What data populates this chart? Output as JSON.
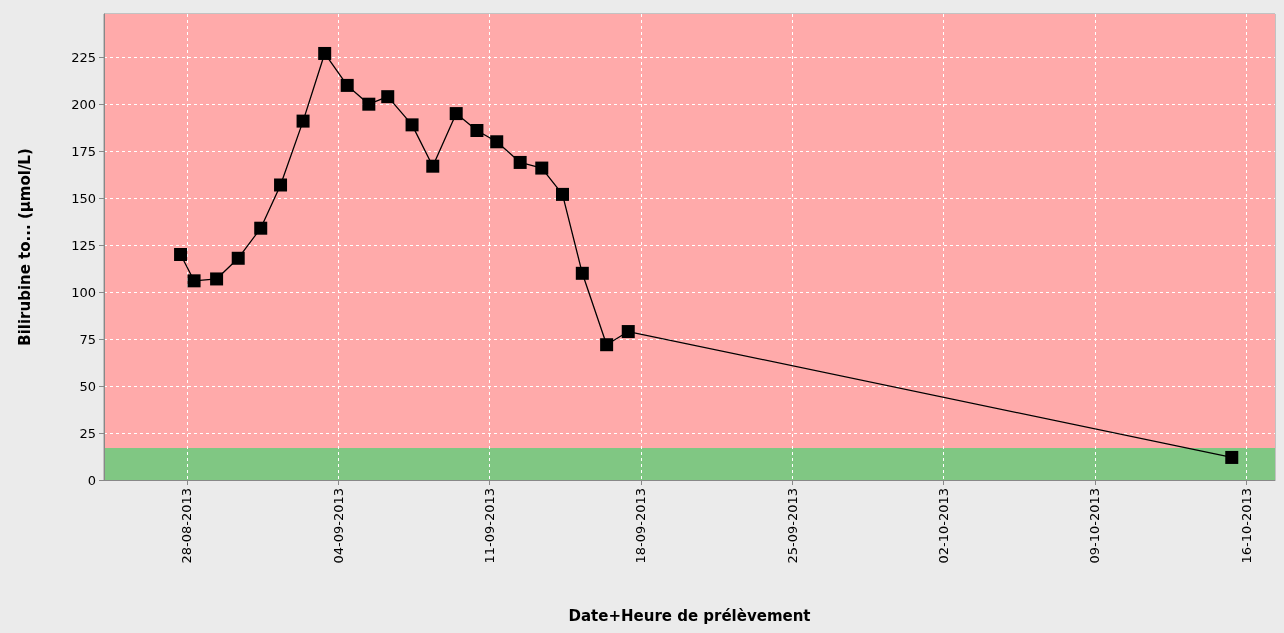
{
  "chart_data": {
    "type": "line",
    "xlabel": "Date+Heure de prélèvement",
    "ylabel": "Bilirubine to... (µmol/L)",
    "x": [
      "2013-08-27T17:00",
      "2013-08-28T08:00",
      "2013-08-29T09:00",
      "2013-08-30T09:00",
      "2013-08-31T10:00",
      "2013-09-01T08:00",
      "2013-09-02T09:00",
      "2013-09-03T09:00",
      "2013-09-04T10:00",
      "2013-09-05T10:00",
      "2013-09-06T07:00",
      "2013-09-07T10:00",
      "2013-09-08T09:00",
      "2013-09-09T11:00",
      "2013-09-10T10:00",
      "2013-09-11T08:00",
      "2013-09-12T10:00",
      "2013-09-13T10:00",
      "2013-09-14T09:00",
      "2013-09-15T07:00",
      "2013-09-16T10:00",
      "2013-09-17T10:00",
      "2013-10-15T08:00"
    ],
    "series": [
      {
        "color": "#000000",
        "values": [
          120,
          106,
          107,
          118,
          134,
          157,
          191,
          227,
          210,
          200,
          204,
          189,
          167,
          195,
          186,
          180,
          169,
          166,
          152,
          110,
          72,
          79,
          12
        ]
      }
    ],
    "xlim": [
      "2013-08-24T04:00",
      "2013-10-17T08:00"
    ],
    "xticks": [
      {
        "value": "2013-08-28",
        "label": "28-08-2013"
      },
      {
        "value": "2013-09-04",
        "label": "04-09-2013"
      },
      {
        "value": "2013-09-11",
        "label": "11-09-2013"
      },
      {
        "value": "2013-09-18",
        "label": "18-09-2013"
      },
      {
        "value": "2013-09-25",
        "label": "25-09-2013"
      },
      {
        "value": "2013-10-02",
        "label": "02-10-2013"
      },
      {
        "value": "2013-10-09",
        "label": "09-10-2013"
      },
      {
        "value": "2013-10-16",
        "label": "16-10-2013"
      }
    ],
    "ylim": [
      0,
      248
    ],
    "yticks": [
      0,
      25,
      50,
      75,
      100,
      125,
      150,
      175,
      200,
      225
    ],
    "bands": [
      {
        "axis": "y",
        "from": 17,
        "to": 248,
        "color": "#ffaaaa"
      },
      {
        "axis": "y",
        "from": 0,
        "to": 17,
        "color": "#80c783"
      }
    ],
    "grid": true,
    "marker": "square",
    "line_style": "solid"
  }
}
